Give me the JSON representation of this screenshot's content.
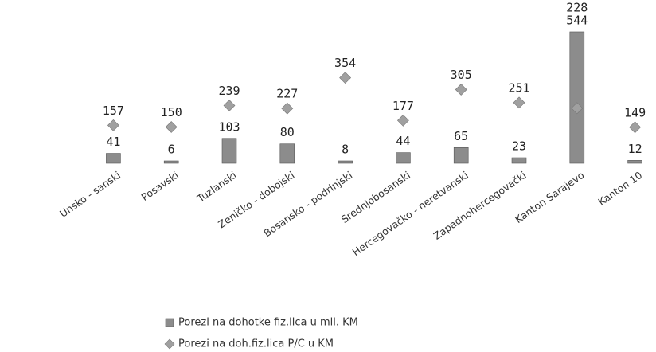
{
  "chart_data": {
    "type": "bar",
    "categories": [
      "Unsko - sanski",
      "Posavski",
      "Tuzlanski",
      "Zeničko - dobojski",
      "Bosansko - podrinjski",
      "Srednjobosanski",
      "Hercegovačko - neretvanski",
      "Zapadnohercegovački",
      "Kanton Sarajevo",
      "Kanton 10"
    ],
    "series": [
      {
        "name": "Porezi na dohotke fiz.lica u mil. KM",
        "color": "#8c8c8c",
        "type": "bar",
        "values": [
          41,
          6,
          103,
          80,
          8,
          44,
          65,
          23,
          544,
          12
        ]
      },
      {
        "name": "Porezi na doh.fiz.lica P/C u KM",
        "color": "#a0a0a0",
        "type": "scatter",
        "axis": "y2",
        "values": [
          157,
          150,
          239,
          227,
          354,
          177,
          305,
          251,
          228,
          149
        ]
      }
    ],
    "ylim": [
      0,
      600
    ],
    "y2lim": [
      0,
      600
    ]
  }
}
